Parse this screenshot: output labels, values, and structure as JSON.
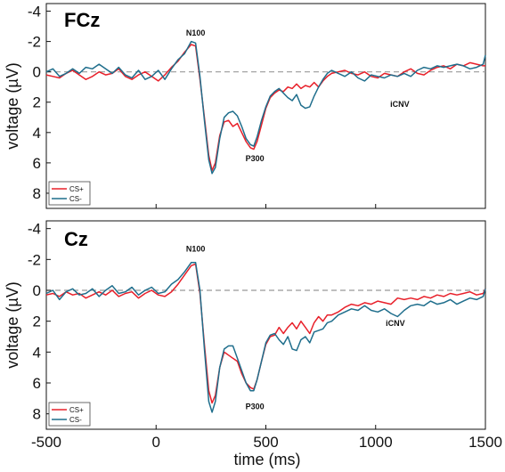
{
  "chart_data": [
    {
      "type": "line",
      "title": "FCz",
      "xlabel": "",
      "ylabel": "voltage (µV)",
      "xlim": [
        -500,
        1500
      ],
      "ylim": [
        -4.5,
        9
      ],
      "y_inverted": true,
      "y_ticks": [
        -4,
        -2,
        0,
        2,
        4,
        6,
        8
      ],
      "x_ticks_labeled": false,
      "baseline": 0,
      "legend_position": "bottom-left",
      "annotations": [
        {
          "text": "N100",
          "x": 180,
          "y": -2.4
        },
        {
          "text": "P300",
          "x": 450,
          "y": 5.9
        },
        {
          "text": "iCNV",
          "x": 1110,
          "y": 2.3
        }
      ],
      "series": [
        {
          "name": "CS+",
          "color": "#e8202a",
          "x": [
            -500,
            -470,
            -440,
            -410,
            -380,
            -350,
            -320,
            -290,
            -260,
            -230,
            -200,
            -170,
            -140,
            -110,
            -80,
            -50,
            -20,
            10,
            40,
            70,
            100,
            130,
            160,
            180,
            200,
            220,
            240,
            255,
            270,
            290,
            310,
            330,
            350,
            370,
            390,
            410,
            430,
            445,
            460,
            480,
            500,
            520,
            540,
            560,
            580,
            600,
            620,
            640,
            660,
            680,
            700,
            720,
            740,
            760,
            780,
            800,
            830,
            860,
            890,
            920,
            950,
            980,
            1010,
            1040,
            1070,
            1100,
            1130,
            1160,
            1190,
            1220,
            1250,
            1280,
            1310,
            1340,
            1370,
            1400,
            1430,
            1460,
            1490,
            1500
          ],
          "y": [
            0.2,
            0.3,
            0.4,
            0.1,
            -0.1,
            0.2,
            0.5,
            0.3,
            0.0,
            0.2,
            0.1,
            -0.2,
            0.3,
            0.5,
            0.2,
            0.0,
            0.3,
            0.6,
            0.2,
            -0.3,
            -0.7,
            -1.3,
            -1.8,
            -1.7,
            0.5,
            3.0,
            5.5,
            6.5,
            6.0,
            4.2,
            3.3,
            3.2,
            3.6,
            3.4,
            4.0,
            4.6,
            5.0,
            5.1,
            4.6,
            3.5,
            2.4,
            1.7,
            1.4,
            1.2,
            1.3,
            1.0,
            1.1,
            0.8,
            1.1,
            0.9,
            1.0,
            0.7,
            1.0,
            0.6,
            0.3,
            0.1,
            0.0,
            -0.1,
            0.1,
            0.2,
            0.0,
            0.3,
            0.4,
            0.1,
            0.2,
            0.3,
            0.0,
            -0.2,
            0.1,
            0.2,
            -0.1,
            -0.3,
            -0.4,
            -0.2,
            -0.5,
            -0.4,
            -0.6,
            -0.5,
            -0.4,
            -0.4
          ]
        },
        {
          "name": "CS-",
          "color": "#1f6e8c",
          "x": [
            -500,
            -470,
            -440,
            -410,
            -380,
            -350,
            -320,
            -290,
            -260,
            -230,
            -200,
            -170,
            -140,
            -110,
            -80,
            -50,
            -20,
            10,
            40,
            70,
            100,
            130,
            160,
            180,
            200,
            220,
            240,
            255,
            270,
            290,
            310,
            330,
            350,
            370,
            390,
            410,
            430,
            445,
            460,
            480,
            500,
            520,
            540,
            560,
            580,
            600,
            620,
            640,
            660,
            680,
            700,
            720,
            740,
            760,
            780,
            800,
            830,
            860,
            890,
            920,
            950,
            980,
            1010,
            1040,
            1070,
            1100,
            1130,
            1160,
            1190,
            1220,
            1250,
            1280,
            1310,
            1340,
            1370,
            1400,
            1430,
            1460,
            1490,
            1500
          ],
          "y": [
            0.0,
            -0.2,
            0.3,
            0.1,
            -0.2,
            0.1,
            -0.3,
            -0.2,
            -0.5,
            -0.2,
            0.1,
            -0.3,
            0.2,
            0.4,
            -0.1,
            0.5,
            0.3,
            -0.1,
            0.5,
            -0.2,
            -0.8,
            -1.2,
            -2.0,
            -1.9,
            0.3,
            3.2,
            5.8,
            6.7,
            6.3,
            4.4,
            3.0,
            2.7,
            2.6,
            2.9,
            3.6,
            4.4,
            4.8,
            4.9,
            4.3,
            3.2,
            2.3,
            1.6,
            1.3,
            1.1,
            1.4,
            1.7,
            1.9,
            1.5,
            2.2,
            2.4,
            2.3,
            1.6,
            1.0,
            0.5,
            0.1,
            -0.1,
            0.1,
            0.3,
            0.0,
            0.4,
            0.6,
            0.2,
            0.3,
            0.4,
            0.2,
            0.3,
            0.1,
            0.3,
            -0.1,
            -0.3,
            -0.2,
            -0.4,
            -0.3,
            -0.4,
            -0.5,
            -0.4,
            -0.2,
            -0.3,
            -0.5,
            -1.1
          ]
        }
      ]
    },
    {
      "type": "line",
      "title": "Cz",
      "xlabel": "time (ms)",
      "ylabel": "voltage (µV)",
      "xlim": [
        -500,
        1500
      ],
      "ylim": [
        -4.5,
        9
      ],
      "y_inverted": true,
      "y_ticks": [
        -4,
        -2,
        0,
        2,
        4,
        6,
        8
      ],
      "x_ticks": [
        -500,
        0,
        500,
        1000,
        1500
      ],
      "baseline": 0,
      "legend_position": "bottom-left",
      "annotations": [
        {
          "text": "N100",
          "x": 180,
          "y": -2.5
        },
        {
          "text": "P300",
          "x": 450,
          "y": 7.7
        },
        {
          "text": "iCNV",
          "x": 1090,
          "y": 2.3
        }
      ],
      "series": [
        {
          "name": "CS+",
          "color": "#e8202a",
          "x": [
            -500,
            -470,
            -440,
            -410,
            -380,
            -350,
            -320,
            -290,
            -260,
            -230,
            -200,
            -170,
            -140,
            -110,
            -80,
            -50,
            -20,
            10,
            40,
            70,
            100,
            130,
            160,
            180,
            200,
            220,
            240,
            255,
            270,
            290,
            310,
            330,
            350,
            370,
            390,
            410,
            430,
            445,
            460,
            480,
            500,
            520,
            540,
            560,
            580,
            600,
            620,
            640,
            660,
            680,
            700,
            720,
            740,
            760,
            780,
            800,
            830,
            860,
            890,
            920,
            950,
            980,
            1010,
            1040,
            1070,
            1100,
            1130,
            1160,
            1190,
            1220,
            1250,
            1280,
            1310,
            1340,
            1370,
            1400,
            1430,
            1460,
            1490,
            1500
          ],
          "y": [
            0.3,
            0.2,
            0.4,
            0.1,
            0.3,
            0.2,
            0.5,
            0.3,
            0.1,
            0.3,
            0.0,
            0.4,
            0.2,
            0.1,
            0.5,
            0.2,
            0.0,
            0.3,
            0.4,
            0.1,
            -0.4,
            -1.0,
            -1.6,
            -1.7,
            0.2,
            3.5,
            6.5,
            7.3,
            6.8,
            5.0,
            4.0,
            4.2,
            4.4,
            4.6,
            5.4,
            6.0,
            6.3,
            6.4,
            5.8,
            4.6,
            3.5,
            3.0,
            2.9,
            2.4,
            2.8,
            2.4,
            2.1,
            2.5,
            2.0,
            2.4,
            2.8,
            2.1,
            1.7,
            2.0,
            1.6,
            1.6,
            1.4,
            1.1,
            0.9,
            1.0,
            0.8,
            0.9,
            0.7,
            0.8,
            0.9,
            0.5,
            0.6,
            0.5,
            0.6,
            0.4,
            0.5,
            0.3,
            0.4,
            0.2,
            0.3,
            0.2,
            0.1,
            0.3,
            0.2,
            -0.1
          ]
        },
        {
          "name": "CS-",
          "color": "#1f6e8c",
          "x": [
            -500,
            -470,
            -440,
            -410,
            -380,
            -350,
            -320,
            -290,
            -260,
            -230,
            -200,
            -170,
            -140,
            -110,
            -80,
            -50,
            -20,
            10,
            40,
            70,
            100,
            130,
            160,
            180,
            200,
            220,
            240,
            255,
            270,
            290,
            310,
            330,
            350,
            370,
            390,
            410,
            430,
            445,
            460,
            480,
            500,
            520,
            540,
            560,
            580,
            600,
            620,
            640,
            660,
            680,
            700,
            720,
            740,
            760,
            780,
            800,
            830,
            860,
            890,
            920,
            950,
            980,
            1010,
            1040,
            1070,
            1100,
            1130,
            1160,
            1190,
            1220,
            1250,
            1280,
            1310,
            1340,
            1370,
            1400,
            1430,
            1460,
            1490,
            1500
          ],
          "y": [
            0.2,
            0.0,
            0.6,
            0.1,
            -0.1,
            0.3,
            0.2,
            -0.1,
            0.4,
            0.0,
            -0.3,
            0.2,
            0.1,
            -0.2,
            0.3,
            0.0,
            -0.2,
            0.2,
            0.1,
            -0.4,
            -0.7,
            -1.2,
            -1.8,
            -1.8,
            0.0,
            3.8,
            7.2,
            7.9,
            7.2,
            5.0,
            3.8,
            3.6,
            3.6,
            4.4,
            5.2,
            6.0,
            6.5,
            6.5,
            5.8,
            4.6,
            3.4,
            2.9,
            2.8,
            3.2,
            3.5,
            3.0,
            3.8,
            3.9,
            3.2,
            3.0,
            3.4,
            2.7,
            2.6,
            2.5,
            2.1,
            2.0,
            1.6,
            1.4,
            1.2,
            1.3,
            1.0,
            1.3,
            1.4,
            1.2,
            1.5,
            1.7,
            1.3,
            1.0,
            0.9,
            1.0,
            0.7,
            0.9,
            0.8,
            0.6,
            0.9,
            0.7,
            0.5,
            0.6,
            0.4,
            -0.1
          ]
        }
      ]
    }
  ]
}
